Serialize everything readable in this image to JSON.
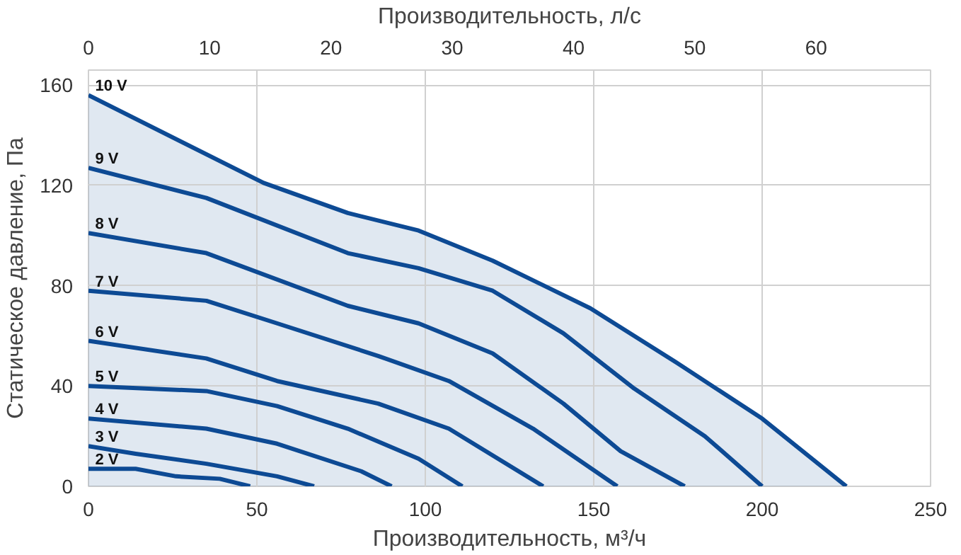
{
  "chart_data": {
    "type": "line",
    "xlabel": "Производительность, м³/ч",
    "ylabel": "Статическое давление, Па",
    "x2label": "Производительность, л/с",
    "xlim": [
      0,
      250
    ],
    "xticks": [
      0,
      50,
      100,
      150,
      200,
      250
    ],
    "ylim": [
      0,
      166
    ],
    "yticks": [
      0,
      40,
      80,
      120,
      160
    ],
    "x2lim": [
      0,
      69.44
    ],
    "x2ticks": [
      0,
      10,
      20,
      30,
      40,
      50,
      60
    ],
    "grid": true,
    "marker": "none",
    "line_style": "solid",
    "series": [
      {
        "name": "10 V",
        "type": "area",
        "color": "#0d4a94",
        "x": [
          0,
          52,
          77,
          98,
          120,
          149,
          175,
          200,
          225
        ],
        "values": [
          156,
          121,
          109,
          102,
          90,
          71,
          49,
          27,
          0
        ]
      },
      {
        "name": "9 V",
        "color": "#0d4a94",
        "x": [
          0,
          35,
          77,
          98,
          120,
          141,
          162,
          183,
          200
        ],
        "values": [
          127,
          115,
          93,
          87,
          78,
          61,
          39,
          20,
          0
        ]
      },
      {
        "name": "8 V",
        "color": "#0d4a94",
        "x": [
          0,
          35,
          77,
          98,
          120,
          141,
          158,
          177
        ],
        "values": [
          101,
          93,
          72,
          65,
          53,
          33,
          14,
          0
        ]
      },
      {
        "name": "7 V",
        "color": "#0d4a94",
        "x": [
          0,
          35,
          56,
          86,
          107,
          132,
          157
        ],
        "values": [
          78,
          74,
          65,
          52,
          42,
          23,
          0
        ]
      },
      {
        "name": "6 V",
        "color": "#0d4a94",
        "x": [
          0,
          35,
          56,
          86,
          107,
          135
        ],
        "values": [
          58,
          51,
          42,
          33,
          23,
          0
        ]
      },
      {
        "name": "5 V",
        "color": "#0d4a94",
        "x": [
          0,
          35,
          56,
          77,
          98,
          111
        ],
        "values": [
          40,
          38,
          32,
          23,
          11,
          0
        ]
      },
      {
        "name": "4 V",
        "color": "#0d4a94",
        "x": [
          0,
          35,
          56,
          81,
          90
        ],
        "values": [
          27,
          23,
          17,
          6,
          0
        ]
      },
      {
        "name": "3 V",
        "color": "#0d4a94",
        "x": [
          0,
          14,
          35,
          56,
          67
        ],
        "values": [
          16,
          13,
          9,
          4,
          0
        ]
      },
      {
        "name": "2 V",
        "color": "#0d4a94",
        "x": [
          0,
          14,
          26,
          39,
          48
        ],
        "values": [
          7,
          7,
          4,
          3,
          0
        ]
      }
    ]
  }
}
